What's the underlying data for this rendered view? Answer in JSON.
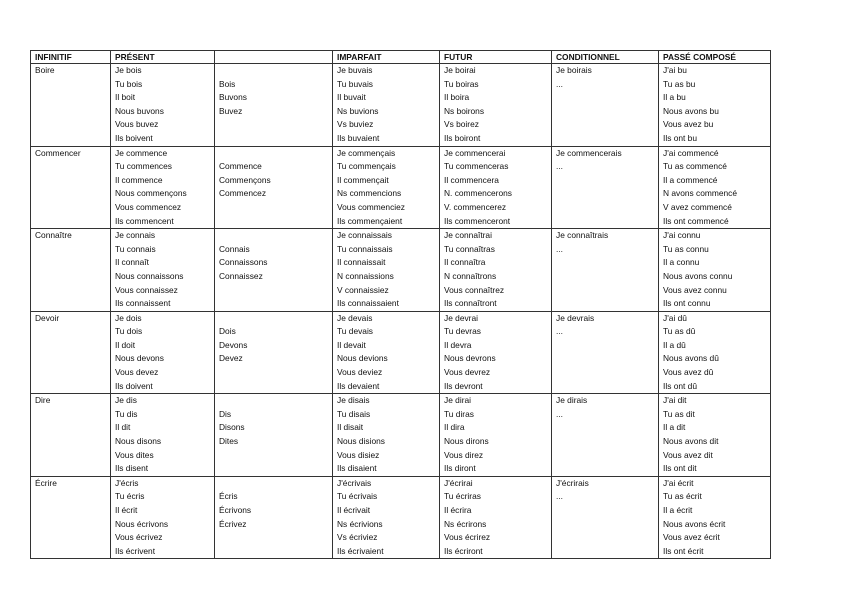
{
  "headers": [
    "INFINITIF",
    "PRÉSENT",
    "",
    "IMPARFAIT",
    "FUTUR",
    "CONDITIONNEL",
    "PASSÉ COMPOSÉ"
  ],
  "verbs": [
    {
      "infinitif": "Boire",
      "present": [
        "Je bois",
        "Tu bois",
        "Il boit",
        "Nous buvons",
        "Vous buvez",
        "Ils boivent"
      ],
      "imperatif": [
        "Bois",
        "Buvons",
        "Buvez"
      ],
      "imparfait": [
        "Je buvais",
        "Tu buvais",
        "Il buvait",
        "Ns buvions",
        "Vs buviez",
        "Ils buvaient"
      ],
      "futur": [
        "Je boirai",
        "Tu boiras",
        "Il boira",
        "Ns boirons",
        "Vs boirez",
        "Ils boiront"
      ],
      "conditionnel": [
        "Je boirais",
        "..."
      ],
      "passe_compose": [
        "J'ai bu",
        "Tu as bu",
        "Il a bu",
        "Nous avons bu",
        "Vous avez bu",
        "Ils ont bu"
      ]
    },
    {
      "infinitif": "Commencer",
      "present": [
        "Je commence",
        "Tu commences",
        "Il commence",
        "Nous commençons",
        "Vous commencez",
        "Ils commencent"
      ],
      "imperatif": [
        "Commence",
        "Commençons",
        "Commencez"
      ],
      "imparfait": [
        "Je commençais",
        "Tu commençais",
        "Il commençait",
        "Ns commencions",
        "Vous commenciez",
        "Ils commençaient"
      ],
      "futur": [
        "Je commencerai",
        "Tu commenceras",
        "Il commencera",
        "N. commencerons",
        "V. commencerez",
        "Ils commenceront"
      ],
      "conditionnel": [
        "Je commencerais",
        "..."
      ],
      "passe_compose": [
        "J'ai commencé",
        "Tu as commencé",
        "Il a commencé",
        "N avons commencé",
        "V avez commencé",
        "Ils ont commencé"
      ]
    },
    {
      "infinitif": "Connaître",
      "present": [
        "Je connais",
        "Tu connais",
        "Il connaît",
        "Nous connaissons",
        "Vous connaissez",
        "Ils connaissent"
      ],
      "imperatif": [
        "Connais",
        "Connaissons",
        "Connaissez"
      ],
      "imparfait": [
        "Je connaissais",
        "Tu connaissais",
        "Il connaissait",
        "N connaissions",
        "V connaissiez",
        "Ils connaissaient"
      ],
      "futur": [
        "Je connaîtrai",
        "Tu connaîtras",
        "Il connaîtra",
        "N connaîtrons",
        "Vous connaîtrez",
        "Ils connaîtront"
      ],
      "conditionnel": [
        "Je connaîtrais",
        "..."
      ],
      "passe_compose": [
        "J'ai connu",
        "Tu as connu",
        "Il a connu",
        "Nous avons connu",
        "Vous avez connu",
        "Ils ont connu"
      ]
    },
    {
      "infinitif": "Devoir",
      "present": [
        "Je dois",
        "Tu dois",
        "Il doit",
        "Nous devons",
        "Vous devez",
        "Ils doivent"
      ],
      "imperatif": [
        "Dois",
        "Devons",
        "Devez"
      ],
      "imparfait": [
        "Je devais",
        "Tu devais",
        "Il devait",
        "Nous devions",
        "Vous deviez",
        "Ils devaient"
      ],
      "futur": [
        "Je devrai",
        "Tu devras",
        "Il devra",
        "Nous devrons",
        "Vous devrez",
        "Ils devront"
      ],
      "conditionnel": [
        "Je devrais",
        "..."
      ],
      "passe_compose": [
        "J'ai dû",
        "Tu as dû",
        "Il a dû",
        "Nous avons dû",
        "Vous avez dû",
        "Ils ont dû"
      ]
    },
    {
      "infinitif": "Dire",
      "present": [
        "Je dis",
        "Tu dis",
        "Il dit",
        "Nous disons",
        "Vous dites",
        "Ils disent"
      ],
      "imperatif": [
        "Dis",
        "Disons",
        "Dites"
      ],
      "imparfait": [
        "Je disais",
        "Tu disais",
        "Il disait",
        "Nous disions",
        "Vous disiez",
        "Ils disaient"
      ],
      "futur": [
        "Je dirai",
        "Tu diras",
        "Il dira",
        "Nous dirons",
        "Vous direz",
        "Ils diront"
      ],
      "conditionnel": [
        "Je dirais",
        "..."
      ],
      "passe_compose": [
        "J'ai dit",
        "Tu as dit",
        "Il a dit",
        "Nous avons dit",
        "Vous avez dit",
        "Ils ont dit"
      ]
    },
    {
      "infinitif": "Écrire",
      "present": [
        "J'écris",
        "Tu écris",
        "Il écrit",
        "Nous écrivons",
        "Vous écrivez",
        "Ils écrivent"
      ],
      "imperatif": [
        "Écris",
        "Écrivons",
        "Écrivez"
      ],
      "imparfait": [
        "J'écrivais",
        "Tu écrivais",
        "Il écrivait",
        "Ns écrivions",
        "Vs écriviez",
        "Ils écrivaient"
      ],
      "futur": [
        "J'écrirai",
        "Tu écriras",
        "Il écrira",
        "Ns écrirons",
        "Vous écrirez",
        "Ils écriront"
      ],
      "conditionnel": [
        "J'écrirais",
        "..."
      ],
      "passe_compose": [
        "J'ai écrit",
        "Tu as écrit",
        "Il a écrit",
        "Nous avons écrit",
        "Vous avez écrit",
        "Ils ont écrit"
      ]
    }
  ]
}
